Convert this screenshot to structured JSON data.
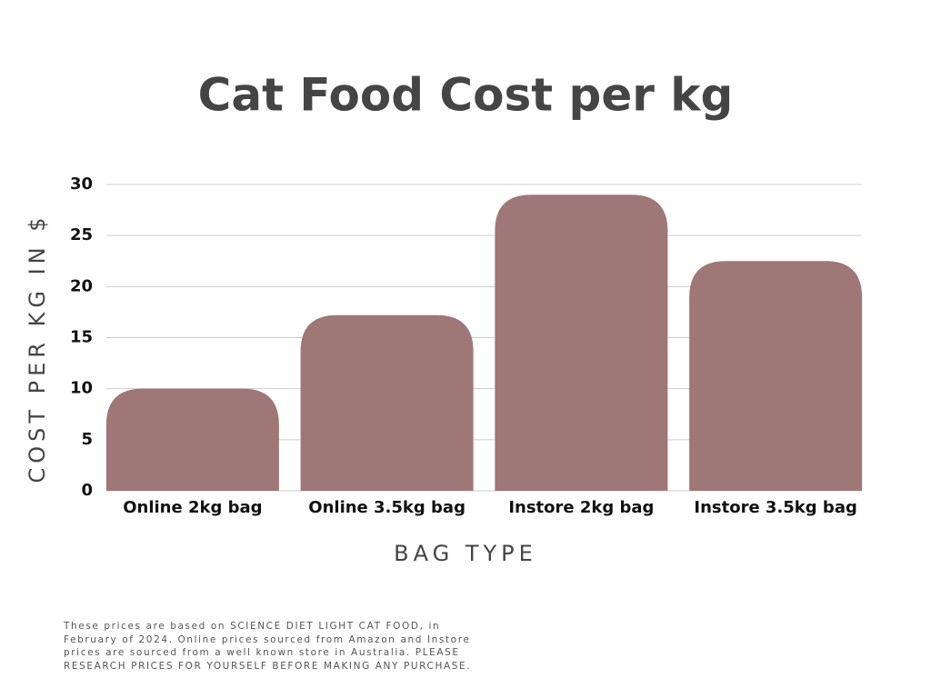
{
  "chart_data": {
    "type": "bar",
    "title": "Cat Food Cost per kg",
    "x_label": "BAG TYPE",
    "y_label": "COST PER KG IN $",
    "categories": [
      "Online 2kg bag",
      "Online 3.5kg bag",
      "Instore 2kg bag",
      "Instore 3.5kg bag"
    ],
    "values": [
      10,
      17.2,
      29,
      22.5
    ],
    "color": "#9e7776",
    "ylim": [
      0,
      30
    ],
    "yticks": [
      0,
      5,
      10,
      15,
      20,
      25,
      30
    ],
    "grid": true,
    "annotation": "These prices are based on SCIENCE DIET LIGHT CAT FOOD, in February of 2024. Online prices sourced from Amazon and Instore prices are sourced from a well known store in Australia. PLEASE RESEARCH PRICES FOR YOURSELF BEFORE MAKING ANY PURCHASE."
  }
}
